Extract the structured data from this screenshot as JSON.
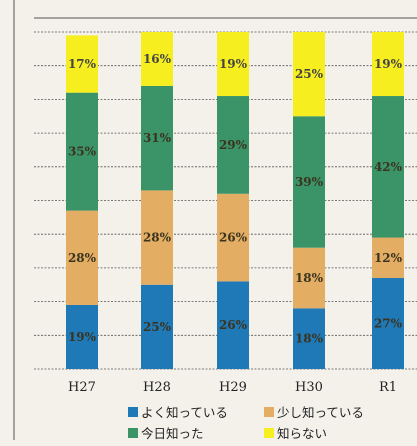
{
  "chart_data": {
    "type": "bar",
    "stacked": true,
    "categories": [
      "H27",
      "H28",
      "H29",
      "H30",
      "R1"
    ],
    "series": [
      {
        "name": "よく知っている",
        "color": "#1f79b6",
        "values": [
          19,
          25,
          26,
          18,
          27
        ]
      },
      {
        "name": "少し知っている",
        "color": "#e3ad63",
        "values": [
          28,
          28,
          26,
          18,
          12
        ]
      },
      {
        "name": "今日知った",
        "color": "#3a9468",
        "values": [
          35,
          31,
          29,
          39,
          42
        ]
      },
      {
        "name": "知らない",
        "color": "#f6ee1f",
        "values": [
          17,
          16,
          19,
          25,
          19
        ]
      }
    ],
    "value_suffix": "%",
    "ylim": [
      0,
      100
    ],
    "grid": true,
    "legend_position": "bottom"
  }
}
